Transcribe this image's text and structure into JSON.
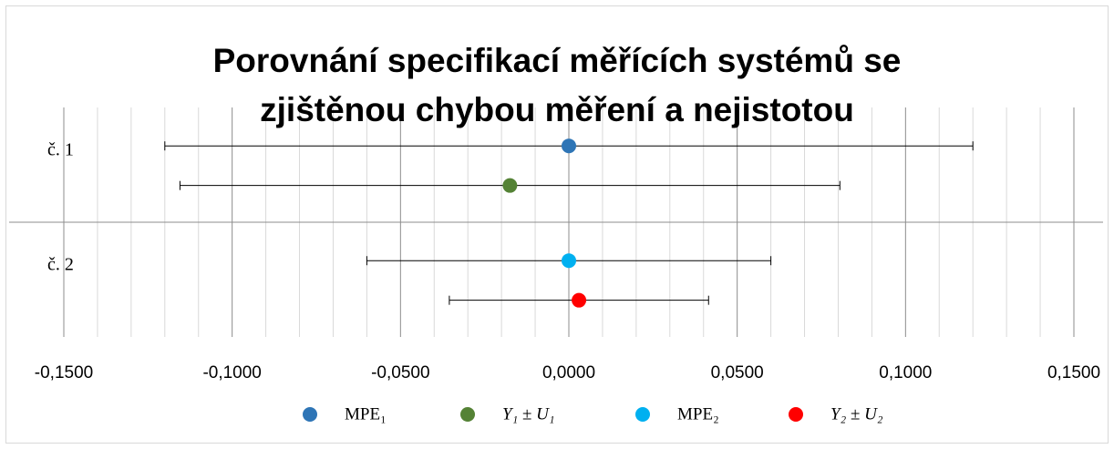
{
  "chart_data": {
    "type": "errorbar",
    "title": "Porovnání specifikací měřících systémů se zjištěnou chybou měření a nejistotou",
    "categories": [
      "č. 1",
      "č. 2"
    ],
    "series": [
      {
        "name": "MPE₁",
        "color": "#2e75b6",
        "values": [
          0,
          null
        ],
        "errors": [
          0.12,
          null
        ]
      },
      {
        "name": "Y₁ ± U₁",
        "color": "#548235",
        "values": [
          -0.0175,
          null
        ],
        "errors": [
          0.098,
          null
        ]
      },
      {
        "name": "MPE₂",
        "color": "#00b0f0",
        "values": [
          null,
          0
        ],
        "errors": [
          null,
          0.06
        ]
      },
      {
        "name": "Y₂ ± U₂",
        "color": "#ff0000",
        "values": [
          null,
          0.003
        ],
        "errors": [
          null,
          0.0385
        ]
      }
    ],
    "xlim": [
      -0.15,
      0.15
    ],
    "xticks": [
      {
        "value": -0.15,
        "label": "-0,1500"
      },
      {
        "value": -0.1,
        "label": "-0,1000"
      },
      {
        "value": -0.05,
        "label": "-0,0500"
      },
      {
        "value": 0,
        "label": "0,0000"
      },
      {
        "value": 0.05,
        "label": "0,0500"
      },
      {
        "value": 0.1,
        "label": "0,1000"
      },
      {
        "value": 0.15,
        "label": "0,1500"
      }
    ],
    "grid": true,
    "legend": "bottom"
  }
}
